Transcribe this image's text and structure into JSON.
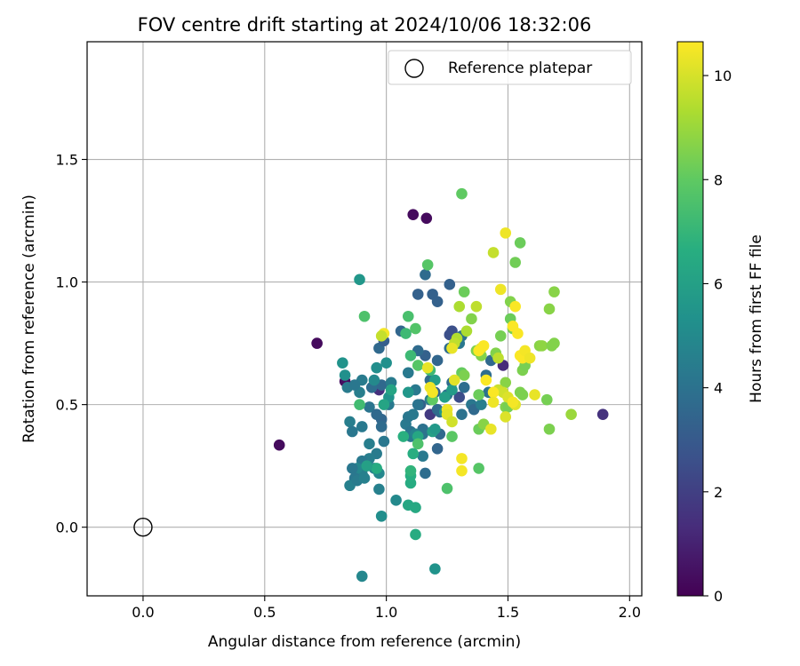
{
  "chart_data": {
    "type": "scatter",
    "title": "FOV centre drift starting at 2024/10/06 18:32:06",
    "xlabel": "Angular distance from reference (arcmin)",
    "ylabel": "Rotation from reference (arcmin)",
    "xlim": [
      -0.23,
      2.05
    ],
    "ylim": [
      -0.28,
      1.98
    ],
    "xticks": [
      0.0,
      0.5,
      1.0,
      1.5,
      2.0
    ],
    "xtick_labels": [
      "0.0",
      "0.5",
      "1.0",
      "1.5",
      "2.0"
    ],
    "yticks": [
      0.0,
      0.5,
      1.0,
      1.5
    ],
    "ytick_labels": [
      "0.0",
      "0.5",
      "1.0",
      "1.5"
    ],
    "grid": true,
    "legend": {
      "placement": "top-right",
      "label": "Reference platepar",
      "marker": "open-circle",
      "x": 0.0,
      "y": 0.0
    },
    "colorbar": {
      "label": "Hours from first FF file",
      "range": [
        0,
        10.65
      ],
      "ticks": [
        0,
        2,
        4,
        6,
        8,
        10
      ],
      "tick_labels": [
        "0",
        "2",
        "4",
        "6",
        "8",
        "10"
      ],
      "colormap": "viridis"
    },
    "points": [
      [
        0.56,
        0.335,
        0.3
      ],
      [
        0.715,
        0.75,
        0.3
      ],
      [
        0.83,
        0.595,
        0.4
      ],
      [
        1.11,
        1.275,
        0.3
      ],
      [
        1.165,
        1.26,
        0.3
      ],
      [
        1.89,
        0.46,
        1.5
      ],
      [
        1.48,
        0.66,
        1.3
      ],
      [
        0.97,
        0.56,
        1.4
      ],
      [
        1.18,
        0.46,
        1.8
      ],
      [
        1.27,
        0.8,
        2.6
      ],
      [
        1.26,
        0.785,
        2.6
      ],
      [
        1.3,
        0.53,
        2.5
      ],
      [
        1.26,
        0.99,
        3.3
      ],
      [
        1.13,
        0.95,
        3.3
      ],
      [
        1.16,
        1.03,
        3.7
      ],
      [
        1.19,
        0.95,
        3.3
      ],
      [
        1.21,
        0.92,
        3.3
      ],
      [
        1.16,
        0.7,
        3.3
      ],
      [
        1.13,
        0.72,
        3.7
      ],
      [
        1.06,
        0.8,
        3.5
      ],
      [
        0.97,
        0.73,
        3.6
      ],
      [
        0.99,
        0.76,
        3.2
      ],
      [
        1.18,
        0.6,
        3.7
      ],
      [
        1.2,
        0.55,
        3.4
      ],
      [
        1.14,
        0.5,
        3.3
      ],
      [
        1.21,
        0.48,
        3.6
      ],
      [
        1.26,
        0.73,
        3.8
      ],
      [
        1.31,
        0.78,
        3.9
      ],
      [
        1.3,
        0.75,
        4.2
      ],
      [
        1.32,
        0.57,
        3.8
      ],
      [
        1.35,
        0.5,
        4.2
      ],
      [
        1.31,
        0.46,
        4.0
      ],
      [
        1.25,
        0.54,
        4.1
      ],
      [
        1.22,
        0.47,
        3.7
      ],
      [
        1.22,
        0.38,
        3.6
      ],
      [
        1.27,
        0.59,
        3.7
      ],
      [
        1.21,
        0.68,
        3.5
      ],
      [
        1.36,
        0.48,
        3.6
      ],
      [
        1.41,
        0.62,
        3.8
      ],
      [
        1.43,
        0.68,
        3.6
      ],
      [
        1.42,
        0.55,
        4.0
      ],
      [
        1.39,
        0.5,
        4.5
      ],
      [
        1.21,
        0.32,
        3.5
      ],
      [
        1.15,
        0.4,
        4.0
      ],
      [
        1.08,
        0.42,
        4.3
      ],
      [
        1.01,
        0.5,
        4.3
      ],
      [
        0.98,
        0.58,
        3.6
      ],
      [
        0.98,
        0.44,
        3.5
      ],
      [
        0.98,
        0.41,
        3.7
      ],
      [
        0.99,
        0.35,
        4.2
      ],
      [
        0.96,
        0.3,
        4.4
      ],
      [
        0.95,
        0.24,
        4.7
      ],
      [
        0.93,
        0.28,
        4.5
      ],
      [
        0.9,
        0.22,
        4.5
      ],
      [
        0.9,
        0.27,
        4.3
      ],
      [
        0.88,
        0.24,
        4.9
      ],
      [
        0.86,
        0.24,
        4.2
      ],
      [
        0.87,
        0.2,
        4.2
      ],
      [
        0.85,
        0.17,
        4.6
      ],
      [
        0.85,
        0.43,
        4.5
      ],
      [
        0.86,
        0.39,
        4.2
      ],
      [
        0.9,
        0.41,
        4.3
      ],
      [
        0.93,
        0.49,
        4.1
      ],
      [
        0.96,
        0.46,
        3.6
      ],
      [
        0.94,
        0.57,
        3.8
      ],
      [
        0.89,
        0.55,
        4.5
      ],
      [
        0.9,
        0.6,
        4.4
      ],
      [
        0.84,
        0.57,
        4.4
      ],
      [
        0.87,
        0.58,
        4.2
      ],
      [
        0.88,
        0.19,
        4.4
      ],
      [
        0.91,
        0.2,
        4.6
      ],
      [
        0.97,
        0.22,
        4.9
      ],
      [
        0.97,
        0.155,
        4.6
      ],
      [
        0.93,
        0.34,
        4.5
      ],
      [
        0.98,
        0.045,
        5.2
      ],
      [
        0.9,
        -0.2,
        4.9
      ],
      [
        1.2,
        -0.17,
        5.4
      ],
      [
        1.04,
        0.11,
        5.0
      ],
      [
        1.09,
        0.45,
        4.2
      ],
      [
        1.11,
        0.46,
        4.3
      ],
      [
        1.12,
        0.56,
        4.3
      ],
      [
        1.15,
        0.38,
        4.1
      ],
      [
        1.18,
        0.52,
        4.5
      ],
      [
        1.13,
        0.5,
        4.1
      ],
      [
        1.16,
        0.22,
        3.8
      ],
      [
        1.15,
        0.29,
        4.3
      ],
      [
        1.1,
        0.39,
        4.1
      ],
      [
        1.1,
        0.37,
        4.3
      ],
      [
        1.12,
        0.38,
        4.7
      ],
      [
        1.09,
        0.63,
        4.3
      ],
      [
        1.02,
        0.59,
        4.4
      ],
      [
        1.01,
        0.53,
        5.4
      ],
      [
        1.0,
        0.67,
        5.3
      ],
      [
        0.96,
        0.65,
        5.2
      ],
      [
        0.82,
        0.67,
        5.4
      ],
      [
        0.83,
        0.62,
        5.3
      ],
      [
        0.89,
        1.01,
        5.6
      ],
      [
        0.95,
        0.6,
        5.0
      ],
      [
        0.99,
        0.5,
        6.2
      ],
      [
        1.02,
        0.56,
        6.2
      ],
      [
        1.19,
        0.39,
        6.0
      ],
      [
        1.2,
        0.6,
        5.9
      ],
      [
        1.24,
        0.53,
        5.9
      ],
      [
        1.27,
        0.56,
        5.8
      ],
      [
        1.24,
        0.47,
        5.6
      ],
      [
        1.2,
        0.4,
        5.7
      ],
      [
        1.09,
        0.55,
        5.6
      ],
      [
        1.09,
        0.09,
        6.3
      ],
      [
        1.12,
        0.08,
        6.4
      ],
      [
        1.12,
        -0.03,
        6.5
      ],
      [
        1.13,
        0.37,
        6.3
      ],
      [
        1.11,
        0.3,
        6.6
      ],
      [
        1.1,
        0.18,
        6.5
      ],
      [
        1.1,
        0.21,
        6.6
      ],
      [
        1.1,
        0.23,
        6.9
      ],
      [
        1.07,
        0.37,
        6.7
      ],
      [
        0.96,
        0.24,
        6.5
      ],
      [
        0.92,
        0.25,
        6.0
      ],
      [
        0.89,
        0.5,
        7.3
      ],
      [
        0.91,
        0.86,
        7.6
      ],
      [
        1.08,
        0.79,
        7.2
      ],
      [
        1.09,
        0.86,
        7.5
      ],
      [
        1.1,
        0.7,
        7.2
      ],
      [
        1.12,
        0.81,
        7.7
      ],
      [
        1.13,
        0.66,
        7.8
      ],
      [
        1.13,
        0.34,
        7.6
      ],
      [
        1.17,
        1.07,
        7.8
      ],
      [
        1.18,
        0.64,
        7.2
      ],
      [
        1.19,
        0.52,
        8.0
      ],
      [
        1.25,
        0.158,
        7.6
      ],
      [
        1.27,
        0.37,
        7.9
      ],
      [
        1.31,
        1.36,
        8.0
      ],
      [
        1.31,
        0.63,
        8.1
      ],
      [
        1.32,
        0.96,
        8.2
      ],
      [
        1.32,
        0.62,
        8.5
      ],
      [
        1.35,
        0.85,
        8.6
      ],
      [
        1.37,
        0.72,
        8.5
      ],
      [
        1.38,
        0.24,
        7.8
      ],
      [
        1.38,
        0.54,
        8.2
      ],
      [
        1.38,
        0.4,
        8.2
      ],
      [
        1.39,
        0.7,
        8.6
      ],
      [
        1.4,
        0.42,
        8.7
      ],
      [
        1.45,
        0.71,
        8.6
      ],
      [
        1.47,
        0.78,
        8.4
      ],
      [
        1.49,
        0.59,
        8.7
      ],
      [
        1.49,
        0.49,
        8.6
      ],
      [
        1.5,
        0.49,
        8.4
      ],
      [
        1.51,
        0.92,
        8.6
      ],
      [
        1.51,
        0.85,
        8.2
      ],
      [
        1.52,
        0.81,
        8.4
      ],
      [
        1.53,
        1.08,
        8.3
      ],
      [
        1.55,
        1.16,
        8.2
      ],
      [
        1.56,
        0.64,
        8.5
      ],
      [
        1.55,
        0.55,
        8.5
      ],
      [
        1.56,
        0.54,
        8.5
      ],
      [
        1.57,
        0.66,
        8.4
      ],
      [
        1.63,
        0.74,
        8.7
      ],
      [
        1.64,
        0.74,
        8.8
      ],
      [
        1.66,
        0.52,
        8.4
      ],
      [
        1.67,
        0.4,
        8.5
      ],
      [
        1.67,
        0.89,
        8.7
      ],
      [
        1.69,
        0.96,
        8.7
      ],
      [
        1.68,
        0.74,
        8.6
      ],
      [
        1.69,
        0.75,
        8.6
      ],
      [
        1.76,
        0.46,
        9.0
      ],
      [
        1.3,
        0.9,
        9.3
      ],
      [
        1.33,
        0.8,
        9.3
      ],
      [
        1.29,
        0.77,
        9.4
      ],
      [
        1.28,
        0.75,
        9.6
      ],
      [
        1.37,
        0.9,
        9.6
      ],
      [
        1.39,
        0.73,
        9.9
      ],
      [
        1.44,
        1.12,
        9.7
      ],
      [
        1.46,
        0.69,
        9.6
      ],
      [
        1.46,
        0.56,
        9.8
      ],
      [
        1.49,
        1.2,
        10.4
      ],
      [
        1.47,
        0.97,
        10.4
      ],
      [
        1.48,
        0.55,
        9.9
      ],
      [
        1.49,
        0.45,
        10.1
      ],
      [
        1.5,
        0.53,
        10.1
      ],
      [
        1.52,
        0.82,
        10.6
      ],
      [
        1.53,
        0.9,
        10.6
      ],
      [
        1.54,
        0.79,
        10.6
      ],
      [
        1.55,
        0.7,
        10.6
      ],
      [
        1.56,
        0.69,
        10.6
      ],
      [
        1.57,
        0.72,
        10.5
      ],
      [
        1.59,
        0.69,
        10.4
      ],
      [
        1.61,
        0.54,
        10.3
      ],
      [
        1.53,
        0.5,
        10.2
      ],
      [
        1.52,
        0.51,
        10.5
      ],
      [
        1.44,
        0.55,
        10.6
      ],
      [
        1.44,
        0.51,
        10.4
      ],
      [
        1.43,
        0.4,
        10.3
      ],
      [
        1.41,
        0.6,
        10.6
      ],
      [
        1.4,
        0.74,
        10.6
      ],
      [
        1.38,
        0.72,
        10.6
      ],
      [
        1.31,
        0.23,
        10.5
      ],
      [
        1.31,
        0.28,
        10.5
      ],
      [
        1.25,
        0.48,
        10.4
      ],
      [
        1.25,
        0.46,
        10.2
      ],
      [
        1.27,
        0.43,
        9.9
      ],
      [
        1.28,
        0.6,
        10.2
      ],
      [
        1.27,
        0.73,
        10.3
      ],
      [
        1.18,
        0.57,
        10.4
      ],
      [
        1.19,
        0.55,
        10.5
      ],
      [
        1.17,
        0.65,
        10.3
      ],
      [
        0.99,
        0.79,
        10.5
      ],
      [
        0.98,
        0.78,
        9.7
      ]
    ]
  }
}
